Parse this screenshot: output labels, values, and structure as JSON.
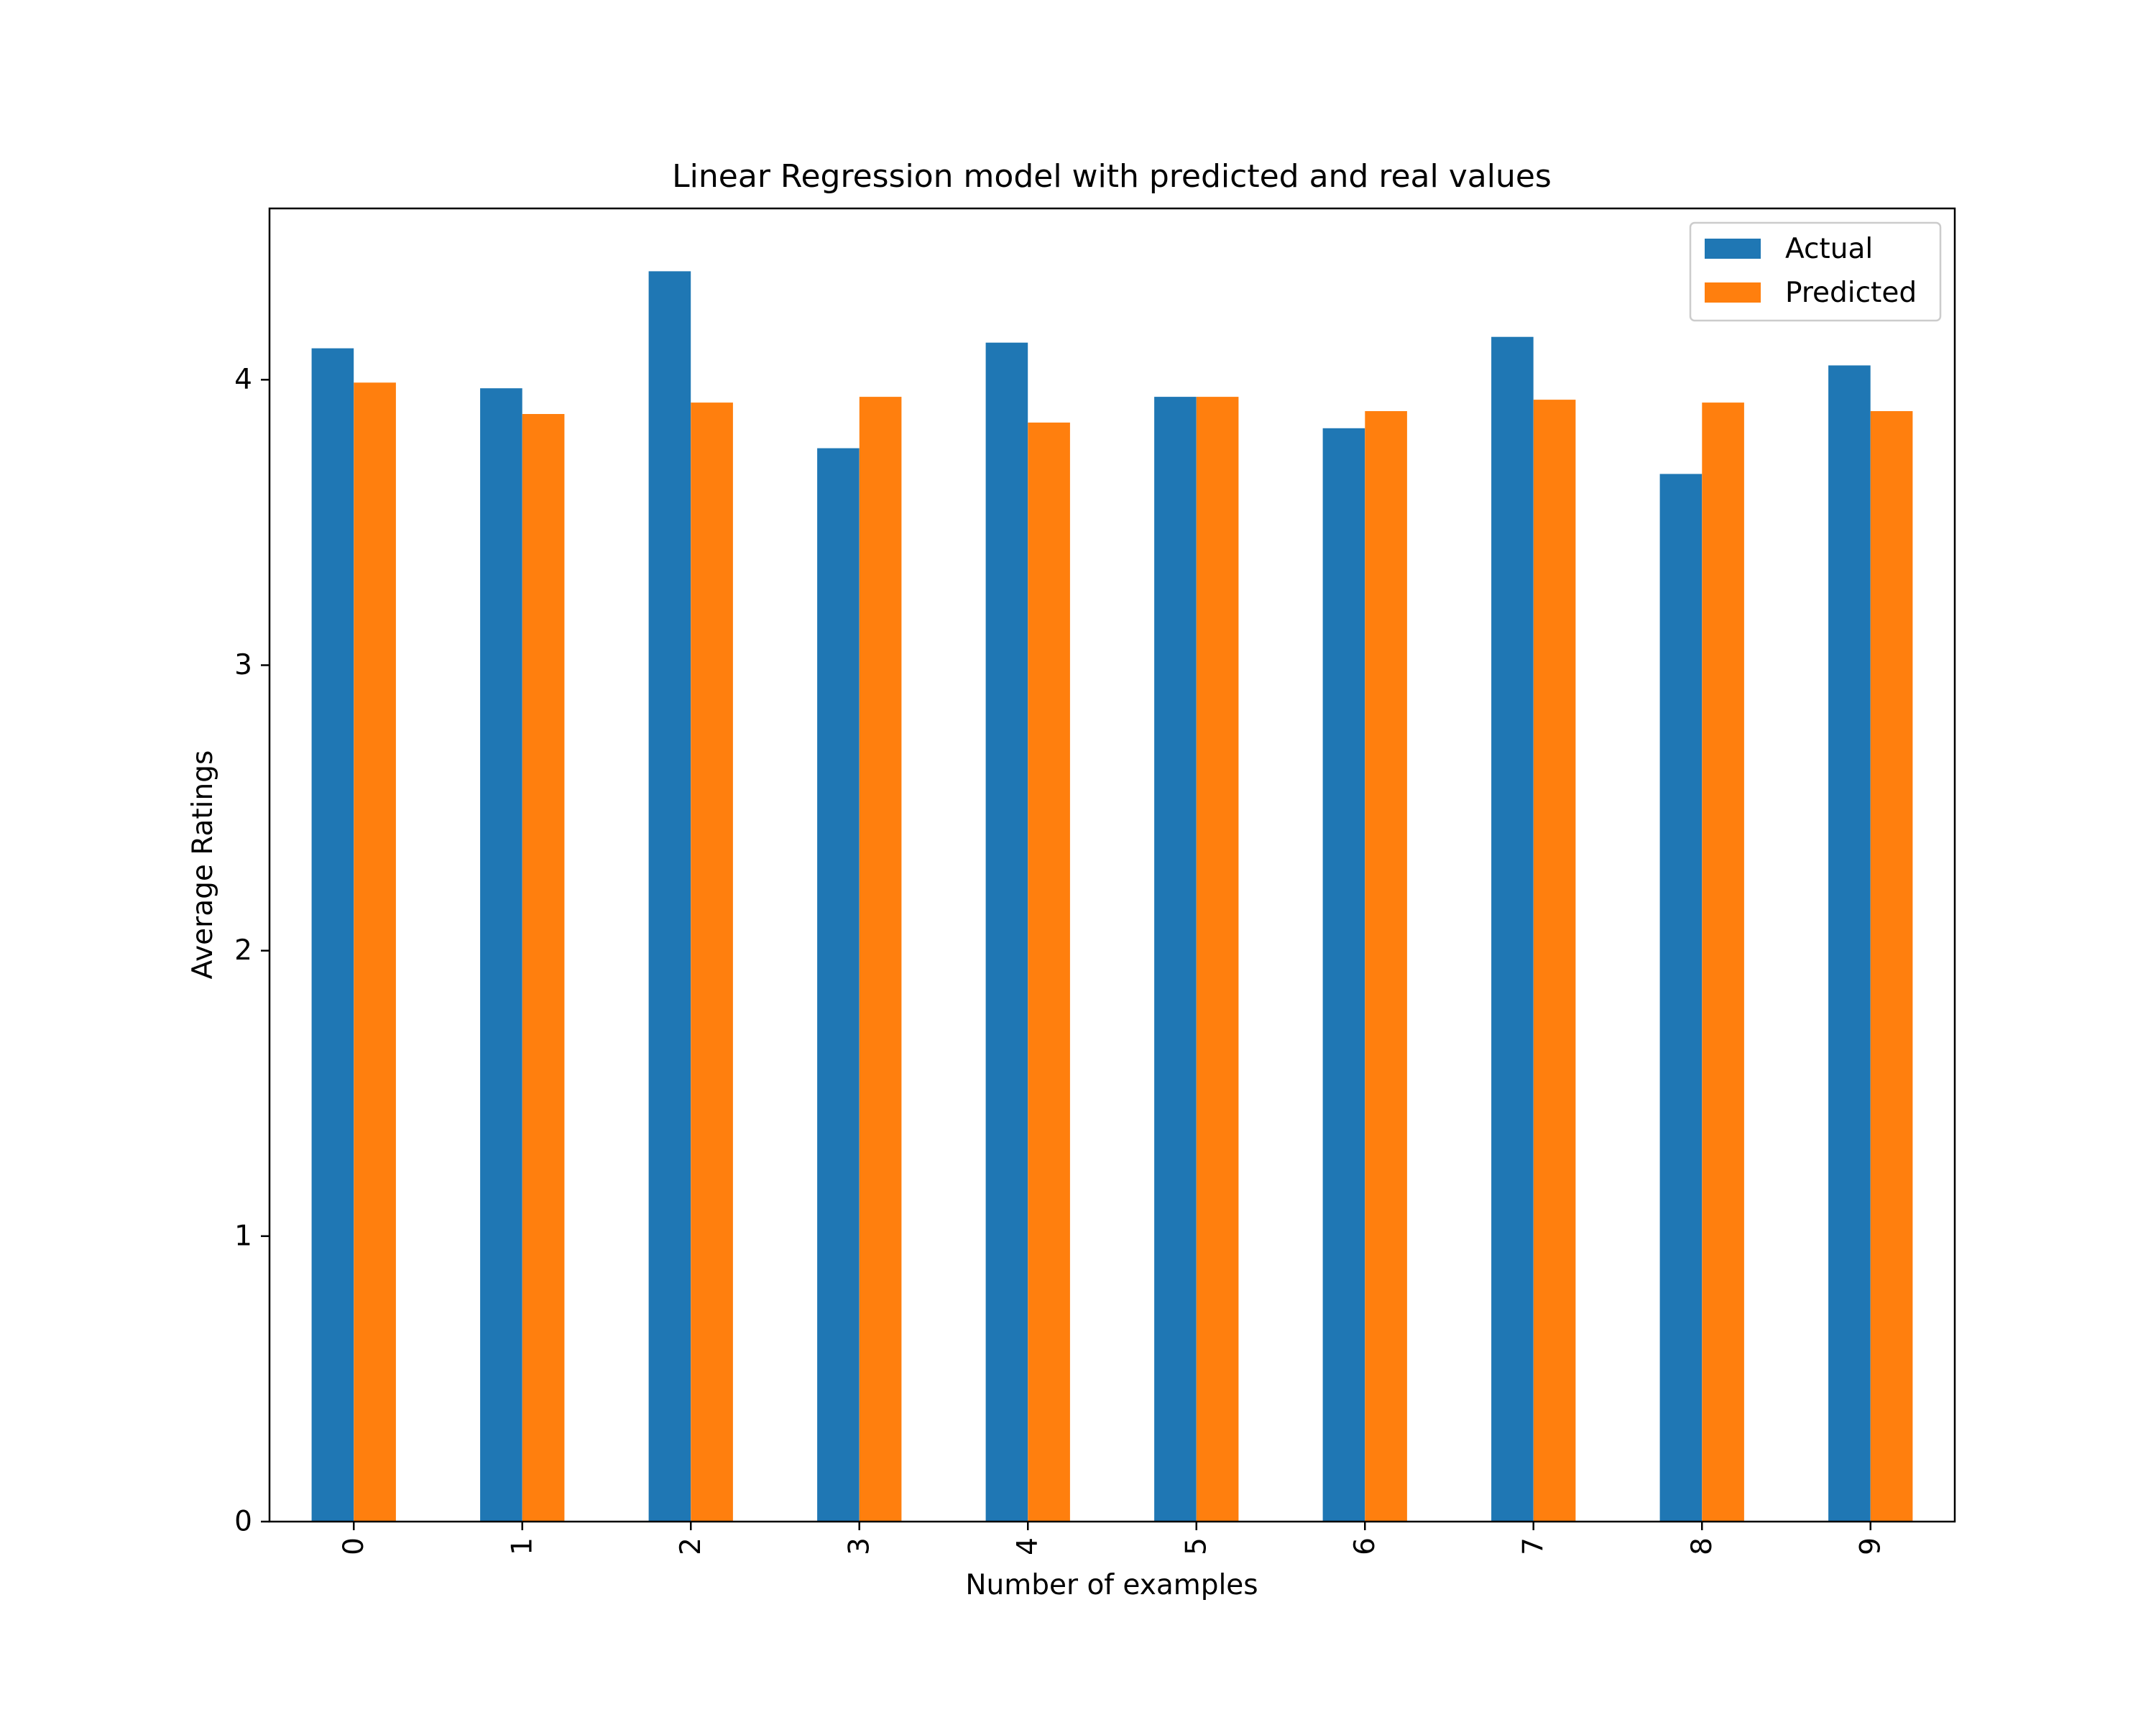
{
  "chart_data": {
    "type": "bar",
    "title": "Linear Regression model with predicted and real values",
    "xlabel": "Number of examples",
    "ylabel": "Average Ratings",
    "categories": [
      "0",
      "1",
      "2",
      "3",
      "4",
      "5",
      "6",
      "7",
      "8",
      "9"
    ],
    "series": [
      {
        "name": "Actual",
        "color": "#1f77b4",
        "values": [
          4.11,
          3.97,
          4.38,
          3.76,
          4.13,
          3.94,
          3.83,
          4.15,
          3.67,
          4.05
        ]
      },
      {
        "name": "Predicted",
        "color": "#ff7f0e",
        "values": [
          3.99,
          3.88,
          3.92,
          3.94,
          3.85,
          3.94,
          3.89,
          3.93,
          3.92,
          3.89
        ]
      }
    ],
    "ylim": [
      0,
      4.6
    ],
    "yticks": [
      0,
      1,
      2,
      3,
      4
    ],
    "legend": "top-right",
    "grid": false
  }
}
